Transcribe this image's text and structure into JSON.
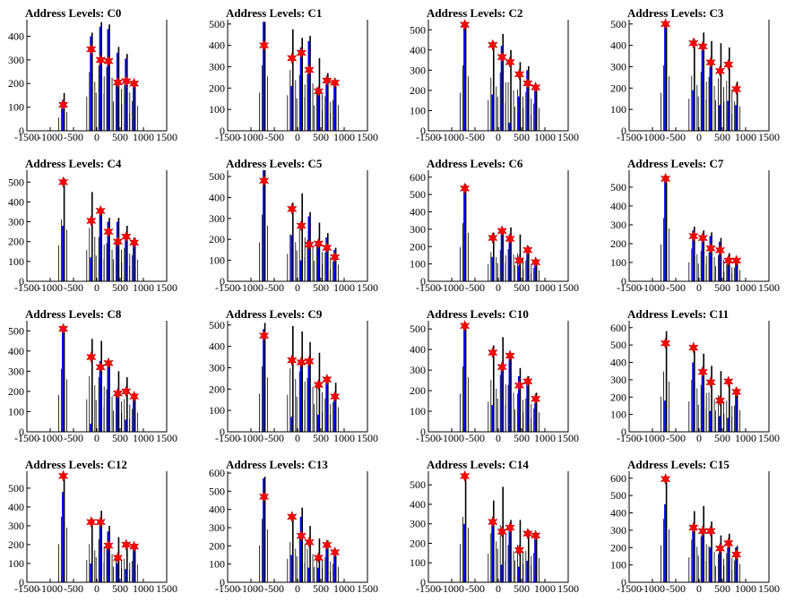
{
  "chart_data": [
    {
      "type": "bar",
      "title": "Address Levels: C0",
      "xlim": [
        -1500,
        1500
      ],
      "xticks": [
        "-1500",
        "-1000",
        "-500",
        "0",
        "500",
        "1000",
        "1500"
      ],
      "ymax": 470,
      "yticks": [
        "0",
        "100",
        "200",
        "300",
        "400"
      ],
      "peaks": [
        {
          "x": -700,
          "black": 160,
          "blue": 130,
          "star": 110
        },
        {
          "x": -100,
          "black": 415,
          "blue": 400,
          "star": 345
        },
        {
          "x": 100,
          "black": 460,
          "blue": 440,
          "star": 300
        },
        {
          "x": 270,
          "black": 450,
          "blue": 430,
          "star": 295
        },
        {
          "x": 470,
          "black": 355,
          "blue": 330,
          "star": 205
        },
        {
          "x": 650,
          "black": 325,
          "blue": 305,
          "star": 210
        },
        {
          "x": 820,
          "black": 210,
          "blue": 200,
          "star": 200
        }
      ]
    },
    {
      "type": "bar",
      "title": "Address Levels: C1",
      "xlim": [
        -1500,
        1500
      ],
      "xticks": [
        "-1500",
        "-1000",
        "-500",
        "0",
        "500",
        "1000",
        "1500"
      ],
      "ymax": 520,
      "yticks": [
        "0",
        "100",
        "200",
        "300",
        "400",
        "500"
      ],
      "peaks": [
        {
          "x": -700,
          "black": 510,
          "blue": 510,
          "star": 400
        },
        {
          "x": -100,
          "black": 475,
          "blue": 210,
          "star": 340
        },
        {
          "x": 100,
          "black": 435,
          "blue": 390,
          "star": 365
        },
        {
          "x": 270,
          "black": 445,
          "blue": 420,
          "star": 285
        },
        {
          "x": 470,
          "black": 340,
          "blue": 180,
          "star": 185
        },
        {
          "x": 650,
          "black": 270,
          "blue": 250,
          "star": 235
        },
        {
          "x": 820,
          "black": 240,
          "blue": 225,
          "star": 225
        }
      ]
    },
    {
      "type": "bar",
      "title": "Address Levels: C2",
      "xlim": [
        -1500,
        1500
      ],
      "xticks": [
        "-1500",
        "-1000",
        "-500",
        "0",
        "500",
        "1000",
        "1500"
      ],
      "ymax": 550,
      "yticks": [
        "0",
        "100",
        "200",
        "300",
        "400",
        "500"
      ],
      "peaks": [
        {
          "x": -700,
          "black": 540,
          "blue": 530,
          "star": 525
        },
        {
          "x": -100,
          "black": 440,
          "blue": 180,
          "star": 425
        },
        {
          "x": 100,
          "black": 480,
          "blue": 420,
          "star": 365
        },
        {
          "x": 270,
          "black": 400,
          "blue": 40,
          "star": 340
        },
        {
          "x": 470,
          "black": 340,
          "blue": 170,
          "star": 280
        },
        {
          "x": 650,
          "black": 320,
          "blue": 300,
          "star": 235
        },
        {
          "x": 820,
          "black": 225,
          "blue": 210,
          "star": 215
        }
      ]
    },
    {
      "type": "bar",
      "title": "Address Levels: C3",
      "xlim": [
        -1500,
        1500
      ],
      "xticks": [
        "-1500",
        "-1000",
        "-500",
        "0",
        "500",
        "1000",
        "1500"
      ],
      "ymax": 520,
      "yticks": [
        "0",
        "100",
        "200",
        "300",
        "400",
        "500"
      ],
      "peaks": [
        {
          "x": -700,
          "black": 510,
          "blue": 510,
          "star": 500
        },
        {
          "x": -100,
          "black": 430,
          "blue": 190,
          "star": 410
        },
        {
          "x": 100,
          "black": 460,
          "blue": 390,
          "star": 395
        },
        {
          "x": 270,
          "black": 420,
          "blue": 300,
          "star": 320
        },
        {
          "x": 470,
          "black": 410,
          "blue": 120,
          "star": 280
        },
        {
          "x": 650,
          "black": 390,
          "blue": 140,
          "star": 310
        },
        {
          "x": 820,
          "black": 230,
          "blue": 120,
          "star": 195
        }
      ]
    },
    {
      "type": "bar",
      "title": "Address Levels: C4",
      "xlim": [
        -1500,
        1500
      ],
      "xticks": [
        "-1500",
        "-1000",
        "-500",
        "0",
        "500",
        "1000",
        "1500"
      ],
      "ymax": 560,
      "yticks": [
        "0",
        "100",
        "200",
        "300",
        "400",
        "500"
      ],
      "peaks": [
        {
          "x": -700,
          "black": 520,
          "blue": 280,
          "star": 500
        },
        {
          "x": -100,
          "black": 450,
          "blue": 120,
          "star": 305
        },
        {
          "x": 100,
          "black": 370,
          "blue": 360,
          "star": 355
        },
        {
          "x": 270,
          "black": 320,
          "blue": 300,
          "star": 250
        },
        {
          "x": 470,
          "black": 320,
          "blue": 300,
          "star": 200
        },
        {
          "x": 650,
          "black": 280,
          "blue": 240,
          "star": 225
        },
        {
          "x": 820,
          "black": 220,
          "blue": 210,
          "star": 195
        }
      ]
    },
    {
      "type": "bar",
      "title": "Address Levels: C5",
      "xlim": [
        -1500,
        1500
      ],
      "xticks": [
        "-1500",
        "-1000",
        "-500",
        "0",
        "500",
        "1000",
        "1500"
      ],
      "ymax": 530,
      "yticks": [
        "0",
        "100",
        "200",
        "300",
        "400",
        "500"
      ],
      "peaks": [
        {
          "x": -700,
          "black": 530,
          "blue": 530,
          "star": 480
        },
        {
          "x": -100,
          "black": 375,
          "blue": 220,
          "star": 345
        },
        {
          "x": 100,
          "black": 420,
          "blue": 100,
          "star": 265
        },
        {
          "x": 270,
          "black": 330,
          "blue": 310,
          "star": 175
        },
        {
          "x": 470,
          "black": 280,
          "blue": 180,
          "star": 180
        },
        {
          "x": 650,
          "black": 230,
          "blue": 210,
          "star": 160
        },
        {
          "x": 820,
          "black": 160,
          "blue": 150,
          "star": 115
        }
      ]
    },
    {
      "type": "bar",
      "title": "Address Levels: C6",
      "xlim": [
        -1500,
        1500
      ],
      "xticks": [
        "-1500",
        "-1000",
        "-500",
        "0",
        "500",
        "1000",
        "1500"
      ],
      "ymax": 640,
      "yticks": [
        "0",
        "100",
        "200",
        "300",
        "400",
        "500",
        "600"
      ],
      "peaks": [
        {
          "x": -700,
          "black": 560,
          "blue": 540,
          "star": 535
        },
        {
          "x": -100,
          "black": 280,
          "blue": 140,
          "star": 250
        },
        {
          "x": 100,
          "black": 300,
          "blue": 280,
          "star": 290
        },
        {
          "x": 270,
          "black": 310,
          "blue": 270,
          "star": 245
        },
        {
          "x": 470,
          "black": 270,
          "blue": 90,
          "star": 120
        },
        {
          "x": 650,
          "black": 200,
          "blue": 190,
          "star": 180
        },
        {
          "x": 820,
          "black": 130,
          "blue": 120,
          "star": 110
        }
      ]
    },
    {
      "type": "bar",
      "title": "Address Levels: C7",
      "xlim": [
        -1500,
        1500
      ],
      "xticks": [
        "-1500",
        "-1000",
        "-500",
        "0",
        "500",
        "1000",
        "1500"
      ],
      "ymax": 590,
      "yticks": [
        "0",
        "100",
        "200",
        "300",
        "400",
        "500"
      ],
      "peaks": [
        {
          "x": -700,
          "black": 560,
          "blue": 560,
          "star": 545
        },
        {
          "x": -100,
          "black": 290,
          "blue": 270,
          "star": 240
        },
        {
          "x": 100,
          "black": 270,
          "blue": 250,
          "star": 230
        },
        {
          "x": 270,
          "black": 260,
          "blue": 240,
          "star": 175
        },
        {
          "x": 470,
          "black": 230,
          "blue": 210,
          "star": 165
        },
        {
          "x": 650,
          "black": 150,
          "blue": 130,
          "star": 110
        },
        {
          "x": 820,
          "black": 120,
          "blue": 110,
          "star": 110
        }
      ]
    },
    {
      "type": "bar",
      "title": "Address Levels: C8",
      "xlim": [
        -1500,
        1500
      ],
      "xticks": [
        "-1500",
        "-1000",
        "-500",
        "0",
        "500",
        "1000",
        "1500"
      ],
      "ymax": 550,
      "yticks": [
        "0",
        "100",
        "200",
        "300",
        "400",
        "500"
      ],
      "peaks": [
        {
          "x": -700,
          "black": 520,
          "blue": 510,
          "star": 510
        },
        {
          "x": -100,
          "black": 460,
          "blue": 40,
          "star": 370
        },
        {
          "x": 100,
          "black": 450,
          "blue": 350,
          "star": 320
        },
        {
          "x": 270,
          "black": 350,
          "blue": 340,
          "star": 340
        },
        {
          "x": 470,
          "black": 300,
          "blue": 200,
          "star": 190
        },
        {
          "x": 650,
          "black": 270,
          "blue": 60,
          "star": 200
        },
        {
          "x": 820,
          "black": 190,
          "blue": 180,
          "star": 175
        }
      ]
    },
    {
      "type": "bar",
      "title": "Address Levels: C9",
      "xlim": [
        -1500,
        1500
      ],
      "xticks": [
        "-1500",
        "-1000",
        "-500",
        "0",
        "500",
        "1000",
        "1500"
      ],
      "ymax": 520,
      "yticks": [
        "0",
        "100",
        "200",
        "300",
        "400",
        "500"
      ],
      "peaks": [
        {
          "x": -700,
          "black": 510,
          "blue": 480,
          "star": 450
        },
        {
          "x": -100,
          "black": 495,
          "blue": 70,
          "star": 335
        },
        {
          "x": 100,
          "black": 470,
          "blue": 320,
          "star": 325
        },
        {
          "x": 270,
          "black": 420,
          "blue": 320,
          "star": 330
        },
        {
          "x": 470,
          "black": 370,
          "blue": 80,
          "star": 220
        },
        {
          "x": 650,
          "black": 260,
          "blue": 230,
          "star": 245
        },
        {
          "x": 820,
          "black": 230,
          "blue": 150,
          "star": 165
        }
      ]
    },
    {
      "type": "bar",
      "title": "Address Levels: C10",
      "xlim": [
        -1500,
        1500
      ],
      "xticks": [
        "-1500",
        "-1000",
        "-500",
        "0",
        "500",
        "1000",
        "1500"
      ],
      "ymax": 540,
      "yticks": [
        "0",
        "100",
        "200",
        "300",
        "400",
        "500"
      ],
      "peaks": [
        {
          "x": -700,
          "black": 530,
          "blue": 520,
          "star": 515
        },
        {
          "x": -100,
          "black": 420,
          "blue": 130,
          "star": 385
        },
        {
          "x": 100,
          "black": 460,
          "blue": 320,
          "star": 315
        },
        {
          "x": 270,
          "black": 380,
          "blue": 360,
          "star": 370
        },
        {
          "x": 470,
          "black": 310,
          "blue": 270,
          "star": 225
        },
        {
          "x": 650,
          "black": 270,
          "blue": 240,
          "star": 245
        },
        {
          "x": 820,
          "black": 190,
          "blue": 140,
          "star": 160
        }
      ]
    },
    {
      "type": "bar",
      "title": "Address Levels: C11",
      "xlim": [
        -1500,
        1500
      ],
      "xticks": [
        "-1500",
        "-1000",
        "-500",
        "0",
        "500",
        "1000",
        "1500"
      ],
      "ymax": 640,
      "yticks": [
        "0",
        "100",
        "200",
        "300",
        "400",
        "500",
        "600"
      ],
      "peaks": [
        {
          "x": -700,
          "black": 580,
          "blue": 180,
          "star": 510
        },
        {
          "x": -100,
          "black": 500,
          "blue": 400,
          "star": 485
        },
        {
          "x": 100,
          "black": 450,
          "blue": 370,
          "star": 345
        },
        {
          "x": 270,
          "black": 380,
          "blue": 120,
          "star": 285
        },
        {
          "x": 470,
          "black": 350,
          "blue": 90,
          "star": 180
        },
        {
          "x": 650,
          "black": 300,
          "blue": 80,
          "star": 290
        },
        {
          "x": 820,
          "black": 250,
          "blue": 230,
          "star": 230
        }
      ]
    },
    {
      "type": "bar",
      "title": "Address Levels: C12",
      "xlim": [
        -1500,
        1500
      ],
      "xticks": [
        "-1500",
        "-1000",
        "-500",
        "0",
        "500",
        "1000",
        "1500"
      ],
      "ymax": 590,
      "yticks": [
        "0",
        "100",
        "200",
        "300",
        "400",
        "500"
      ],
      "peaks": [
        {
          "x": -700,
          "black": 580,
          "blue": 480,
          "star": 565
        },
        {
          "x": -100,
          "black": 340,
          "blue": 100,
          "star": 320
        },
        {
          "x": 100,
          "black": 380,
          "blue": 330,
          "star": 320
        },
        {
          "x": 270,
          "black": 300,
          "blue": 270,
          "star": 195
        },
        {
          "x": 470,
          "black": 240,
          "blue": 100,
          "star": 130
        },
        {
          "x": 650,
          "black": 210,
          "blue": 70,
          "star": 200
        },
        {
          "x": 820,
          "black": 190,
          "blue": 180,
          "star": 190
        }
      ]
    },
    {
      "type": "bar",
      "title": "Address Levels: C13",
      "xlim": [
        -1500,
        1500
      ],
      "xticks": [
        "-1500",
        "-1000",
        "-500",
        "0",
        "500",
        "1000",
        "1500"
      ],
      "ymax": 610,
      "yticks": [
        "0",
        "100",
        "200",
        "300",
        "400",
        "500",
        "600"
      ],
      "peaks": [
        {
          "x": -700,
          "black": 580,
          "blue": 570,
          "star": 470
        },
        {
          "x": -100,
          "black": 370,
          "blue": 150,
          "star": 360
        },
        {
          "x": 100,
          "black": 410,
          "blue": 360,
          "star": 255
        },
        {
          "x": 270,
          "black": 310,
          "blue": 80,
          "star": 220
        },
        {
          "x": 470,
          "black": 240,
          "blue": 80,
          "star": 135
        },
        {
          "x": 650,
          "black": 230,
          "blue": 210,
          "star": 205
        },
        {
          "x": 820,
          "black": 170,
          "blue": 150,
          "star": 165
        }
      ]
    },
    {
      "type": "bar",
      "title": "Address Levels: C14",
      "xlim": [
        -1500,
        1500
      ],
      "xticks": [
        "-1500",
        "-1000",
        "-500",
        "0",
        "500",
        "1000",
        "1500"
      ],
      "ymax": 570,
      "yticks": [
        "0",
        "100",
        "200",
        "300",
        "400",
        "500"
      ],
      "peaks": [
        {
          "x": -700,
          "black": 560,
          "blue": 300,
          "star": 545
        },
        {
          "x": -100,
          "black": 420,
          "blue": 320,
          "star": 310
        },
        {
          "x": 100,
          "black": 490,
          "blue": 90,
          "star": 260
        },
        {
          "x": 270,
          "black": 320,
          "blue": 290,
          "star": 280
        },
        {
          "x": 470,
          "black": 320,
          "blue": 80,
          "star": 165
        },
        {
          "x": 650,
          "black": 270,
          "blue": 110,
          "star": 250
        },
        {
          "x": 820,
          "black": 250,
          "blue": 240,
          "star": 240
        }
      ]
    },
    {
      "type": "bar",
      "title": "Address Levels: C15",
      "xlim": [
        -1500,
        1500
      ],
      "xticks": [
        "-1500",
        "-1000",
        "-500",
        "0",
        "500",
        "1000",
        "1500"
      ],
      "ymax": 640,
      "yticks": [
        "0",
        "100",
        "200",
        "300",
        "400",
        "500",
        "600"
      ],
      "peaks": [
        {
          "x": -700,
          "black": 610,
          "blue": 450,
          "star": 595
        },
        {
          "x": -100,
          "black": 410,
          "blue": 320,
          "star": 315
        },
        {
          "x": 100,
          "black": 440,
          "blue": 310,
          "star": 295
        },
        {
          "x": 270,
          "black": 350,
          "blue": 200,
          "star": 295
        },
        {
          "x": 470,
          "black": 270,
          "blue": 200,
          "star": 195
        },
        {
          "x": 650,
          "black": 280,
          "blue": 200,
          "star": 225
        },
        {
          "x": 820,
          "black": 210,
          "blue": 200,
          "star": 160
        }
      ]
    }
  ],
  "colors": {
    "black_bar": "#000000",
    "blue_bar": "#0000ff",
    "star": "#ff0000",
    "axis": "#000000"
  }
}
